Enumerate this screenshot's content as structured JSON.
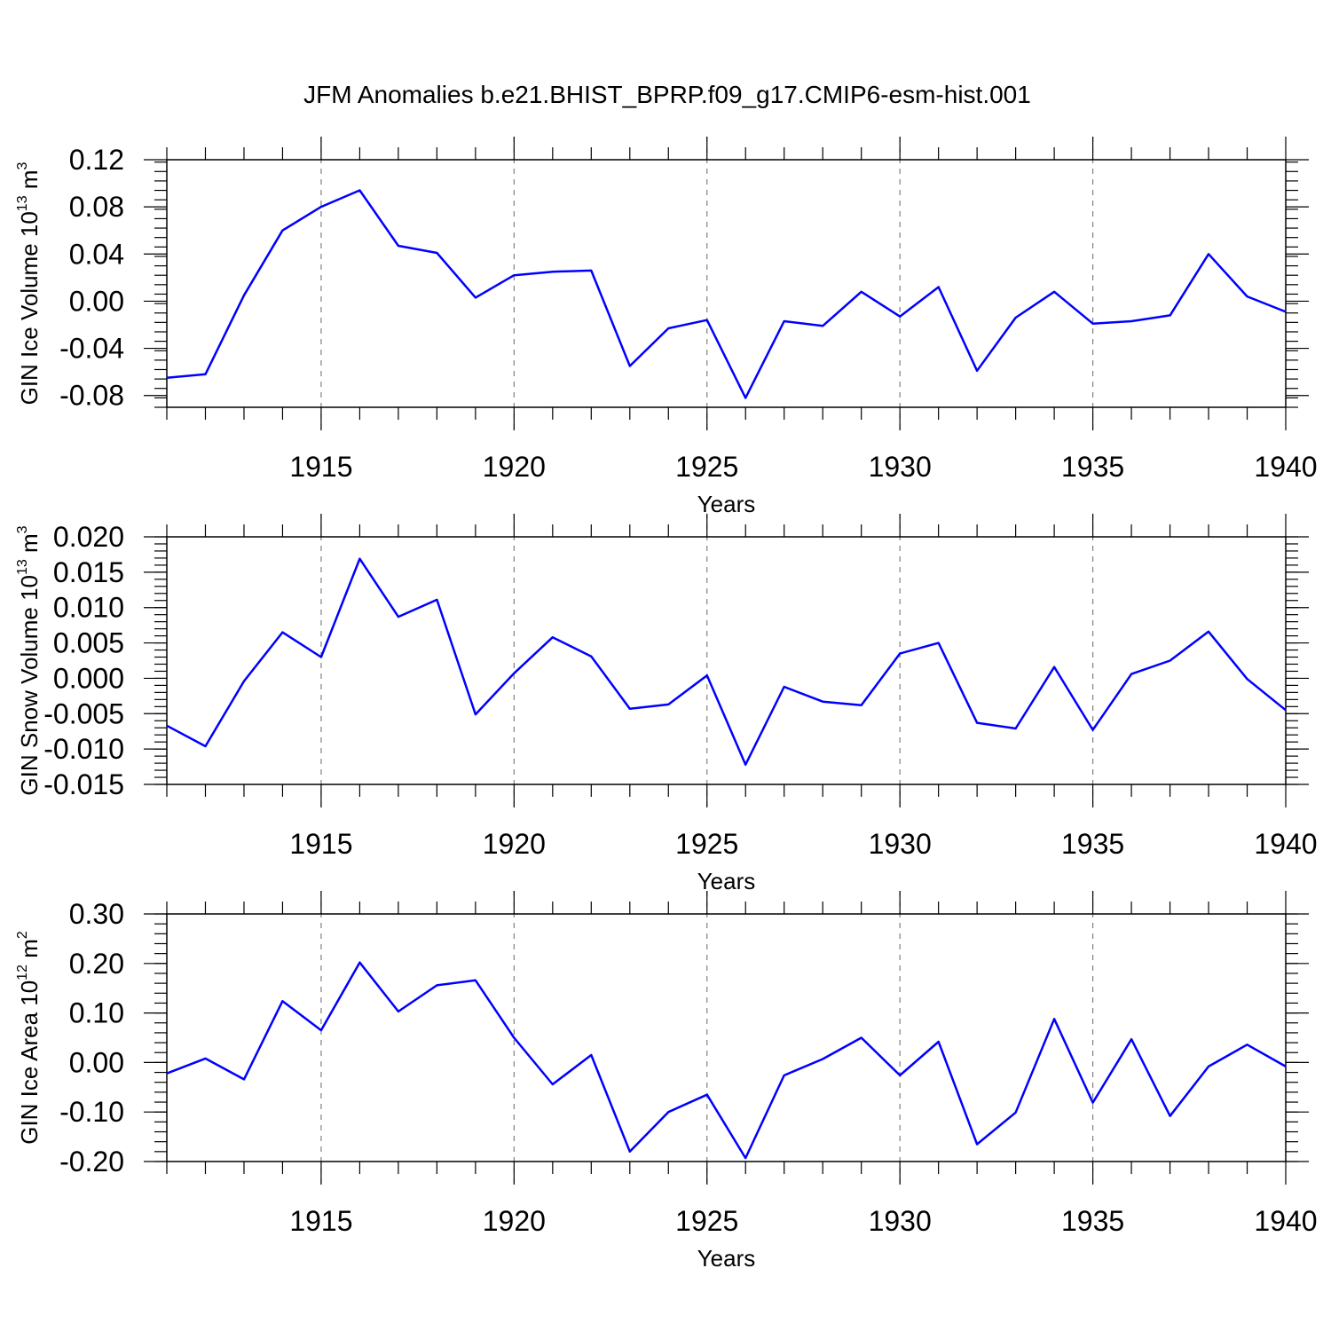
{
  "title": "JFM Anomalies b.e21.BHIST_BPRP.f09_g17.CMIP6-esm-hist.001",
  "chart_data": [
    {
      "type": "line",
      "ylabel": {
        "prefix": "GIN Ice Volume 10",
        "exp": "13",
        "unit": " m",
        "unit_exp": "3"
      },
      "xlabel": "Years",
      "xlim": [
        1911,
        1940
      ],
      "ylim": [
        -0.09,
        0.12
      ],
      "xticks": [
        1915,
        1920,
        1925,
        1930,
        1935,
        1940
      ],
      "yticks": [
        -0.08,
        -0.04,
        0.0,
        0.04,
        0.08,
        0.12
      ],
      "ytick_labels": [
        "-0.08",
        "-0.04",
        "0.00",
        "0.04",
        "0.08",
        "0.12"
      ],
      "yminor_step": 0.008,
      "grid": "vertical dashed at major x ticks",
      "color": "#0000ff",
      "x": [
        1911,
        1912,
        1913,
        1914,
        1915,
        1916,
        1917,
        1918,
        1919,
        1920,
        1921,
        1922,
        1923,
        1924,
        1925,
        1926,
        1927,
        1928,
        1929,
        1930,
        1931,
        1932,
        1933,
        1934,
        1935,
        1936,
        1937,
        1938,
        1939,
        1940
      ],
      "y": [
        -0.065,
        -0.062,
        0.005,
        0.06,
        0.08,
        0.094,
        0.047,
        0.041,
        0.003,
        0.022,
        0.025,
        0.026,
        -0.055,
        -0.023,
        -0.016,
        -0.082,
        -0.017,
        -0.021,
        0.008,
        -0.013,
        0.012,
        -0.059,
        -0.014,
        0.008,
        -0.019,
        -0.017,
        -0.012,
        0.04,
        0.004,
        -0.009
      ]
    },
    {
      "type": "line",
      "ylabel": {
        "prefix": "GIN Snow Volume 10",
        "exp": "13",
        "unit": " m",
        "unit_exp": "3"
      },
      "xlabel": "Years",
      "xlim": [
        1911,
        1940
      ],
      "ylim": [
        -0.015,
        0.02
      ],
      "xticks": [
        1915,
        1920,
        1925,
        1930,
        1935,
        1940
      ],
      "yticks": [
        -0.015,
        -0.01,
        -0.005,
        0.0,
        0.005,
        0.01,
        0.015,
        0.02
      ],
      "ytick_labels": [
        "-0.015",
        "-0.010",
        "-0.005",
        "0.000",
        "0.005",
        "0.010",
        "0.015",
        "0.020"
      ],
      "yminor_step": 0.001,
      "grid": "vertical dashed at major x ticks",
      "color": "#0000ff",
      "x": [
        1911,
        1912,
        1913,
        1914,
        1915,
        1916,
        1917,
        1918,
        1919,
        1920,
        1921,
        1922,
        1923,
        1924,
        1925,
        1926,
        1927,
        1928,
        1929,
        1930,
        1931,
        1932,
        1933,
        1934,
        1935,
        1936,
        1937,
        1938,
        1939,
        1940
      ],
      "y": [
        -0.0067,
        -0.0096,
        -0.0004,
        0.0065,
        0.003,
        0.0169,
        0.0087,
        0.0111,
        -0.0051,
        0.0007,
        0.0058,
        0.0031,
        -0.0043,
        -0.0037,
        0.0004,
        -0.0122,
        -0.0012,
        -0.0033,
        -0.0038,
        0.0035,
        0.005,
        -0.0063,
        -0.0071,
        0.0016,
        -0.0073,
        0.0006,
        0.0025,
        0.0066,
        -0.0001,
        -0.0045
      ]
    },
    {
      "type": "line",
      "ylabel": {
        "prefix": "GIN Ice Area 10",
        "exp": "12",
        "unit": " m",
        "unit_exp": "2"
      },
      "xlabel": "Years",
      "xlim": [
        1911,
        1940
      ],
      "ylim": [
        -0.2,
        0.3
      ],
      "xticks": [
        1915,
        1920,
        1925,
        1930,
        1935,
        1940
      ],
      "yticks": [
        -0.2,
        -0.1,
        0.0,
        0.1,
        0.2,
        0.3
      ],
      "ytick_labels": [
        "-0.20",
        "-0.10",
        "0.00",
        "0.10",
        "0.20",
        "0.30"
      ],
      "yminor_step": 0.02,
      "grid": "vertical dashed at major x ticks",
      "color": "#0000ff",
      "x": [
        1911,
        1912,
        1913,
        1914,
        1915,
        1916,
        1917,
        1918,
        1919,
        1920,
        1921,
        1922,
        1923,
        1924,
        1925,
        1926,
        1927,
        1928,
        1929,
        1930,
        1931,
        1932,
        1933,
        1934,
        1935,
        1936,
        1937,
        1938,
        1939,
        1940
      ],
      "y": [
        -0.022,
        0.008,
        -0.034,
        0.124,
        0.065,
        0.202,
        0.103,
        0.156,
        0.166,
        0.05,
        -0.044,
        0.015,
        -0.18,
        -0.1,
        -0.065,
        -0.193,
        -0.026,
        0.007,
        0.05,
        -0.026,
        0.042,
        -0.165,
        -0.101,
        0.088,
        -0.081,
        0.047,
        -0.108,
        -0.008,
        0.036,
        -0.008
      ]
    }
  ]
}
